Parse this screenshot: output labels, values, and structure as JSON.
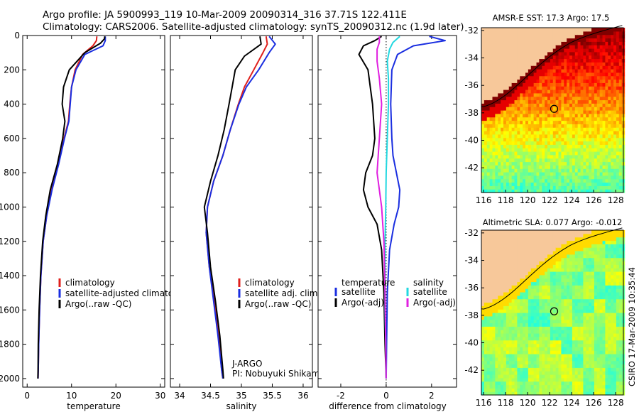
{
  "header": {
    "line1": "Argo profile: JA 5900993_119 10-Mar-2009 20090314_316 37.71S 122.411E",
    "line2": "Climatology: CARS2006. Satellite-adjusted climatology: synTS_20090312.nc (1.9d later)"
  },
  "footer": {
    "stamp": "CSIRO 17-Mar-2009 10:35:44"
  },
  "chart_data": [
    {
      "type": "line",
      "xlabel": "temperature",
      "ylabel": "",
      "xlim": [
        -1,
        31
      ],
      "ylim": [
        2050,
        0
      ],
      "xticks": [
        "0",
        "10",
        "20",
        "30"
      ],
      "yticks": [
        "0",
        "200",
        "400",
        "600",
        "800",
        "1000",
        "1200",
        "1400",
        "1600",
        "1800",
        "2000"
      ],
      "legend": [
        "climatology",
        "satellite-adjusted climatology",
        "Argo(..raw -QC)"
      ],
      "legend_position": "lower-right",
      "series": [
        {
          "name": "climatology",
          "color": "#e0201c",
          "x": [
            15.7,
            15.6,
            14.8,
            12.5,
            10.8,
            10.0,
            9.6,
            9.3,
            8.3,
            7.0,
            5.5,
            4.4,
            3.6,
            3.1,
            2.8,
            2.6,
            2.5,
            2.45
          ],
          "y": [
            5,
            30,
            60,
            110,
            200,
            300,
            400,
            500,
            600,
            750,
            900,
            1050,
            1200,
            1400,
            1600,
            1800,
            1950,
            2000
          ]
        },
        {
          "name": "satellite-adjusted climatology",
          "color": "#1a2ee0",
          "x": [
            17.6,
            17.6,
            17.1,
            13.0,
            11.0,
            10.0,
            9.7,
            9.4,
            8.4,
            7.1,
            5.6,
            4.4,
            3.6,
            3.1,
            2.8,
            2.6,
            2.5,
            2.45
          ],
          "y": [
            5,
            30,
            60,
            110,
            200,
            300,
            400,
            500,
            600,
            750,
            900,
            1050,
            1200,
            1400,
            1600,
            1800,
            1950,
            2000
          ]
        },
        {
          "name": "Argo(..raw -QC)",
          "color": "#000000",
          "x": [
            17.5,
            17.4,
            16.5,
            13.0,
            9.5,
            8.2,
            7.9,
            8.5,
            8.0,
            6.8,
            5.2,
            4.2,
            3.5,
            3.0,
            2.7,
            2.5,
            2.45,
            2.4
          ],
          "y": [
            5,
            20,
            45,
            100,
            200,
            300,
            400,
            500,
            600,
            750,
            900,
            1050,
            1200,
            1400,
            1600,
            1800,
            1950,
            2000
          ]
        }
      ]
    },
    {
      "type": "line",
      "xlabel": "salinity",
      "ylabel": "",
      "xlim": [
        33.85,
        36.15
      ],
      "ylim": [
        2050,
        0
      ],
      "xticks": [
        "34",
        "34.5",
        "35",
        "35.5",
        "36"
      ],
      "legend": [
        "climatology",
        "satellite adj. clim.",
        "Argo(..raw -QC)"
      ],
      "legend_position": "lower-right",
      "annotations": [
        "J-ARGO",
        "PI: Nobuyuki Shikama"
      ],
      "series": [
        {
          "name": "climatology",
          "color": "#e0201c",
          "x": [
            35.4,
            35.42,
            35.35,
            35.2,
            35.05,
            34.95,
            34.82,
            34.7,
            34.55,
            34.45,
            34.43,
            34.48,
            34.56,
            34.63,
            34.68,
            34.7
          ],
          "y": [
            5,
            50,
            100,
            200,
            300,
            400,
            550,
            700,
            850,
            1000,
            1150,
            1350,
            1550,
            1750,
            1950,
            2000
          ]
        },
        {
          "name": "satellite adj. clim.",
          "color": "#1a2ee0",
          "x": [
            35.45,
            35.55,
            35.45,
            35.28,
            35.08,
            34.96,
            34.82,
            34.7,
            34.55,
            34.45,
            34.43,
            34.48,
            34.55,
            34.62,
            34.68,
            34.7
          ],
          "y": [
            5,
            50,
            100,
            200,
            300,
            400,
            550,
            700,
            850,
            1000,
            1150,
            1350,
            1550,
            1750,
            1950,
            2000
          ]
        },
        {
          "name": "Argo(..raw -QC)",
          "color": "#000000",
          "x": [
            35.3,
            35.32,
            35.05,
            34.9,
            34.85,
            34.8,
            34.72,
            34.62,
            34.5,
            34.4,
            34.45,
            34.5,
            34.58,
            34.65,
            34.7,
            34.71
          ],
          "y": [
            5,
            50,
            120,
            200,
            300,
            400,
            550,
            700,
            850,
            1000,
            1150,
            1350,
            1550,
            1750,
            1950,
            2000
          ]
        }
      ]
    },
    {
      "type": "line",
      "xlabel": "difference from climatology",
      "ylabel": "",
      "xlim": [
        -3,
        3.1
      ],
      "ylim": [
        2050,
        0
      ],
      "xticks": [
        "-2",
        "0",
        "2"
      ],
      "legend": [
        "temperature",
        "satellite",
        "Argo(-adj)",
        "salinity",
        "satellite",
        "Argo(-adj)"
      ],
      "legend_position": "lower",
      "series": [
        {
          "name": "satellite",
          "group": "temperature",
          "color": "#1a2ee0",
          "x": [
            1.9,
            2.6,
            1.2,
            0.5,
            0.25,
            0.2,
            0.25,
            0.3,
            0.45,
            0.6,
            0.55,
            0.35,
            0.15,
            0.05,
            0.02,
            0.0
          ],
          "y": [
            5,
            30,
            60,
            110,
            200,
            400,
            600,
            700,
            800,
            900,
            1000,
            1100,
            1250,
            1500,
            1800,
            2000
          ]
        },
        {
          "name": "Argo(-adj)",
          "group": "temperature",
          "color": "#000000",
          "x": [
            -0.2,
            -0.5,
            -1.0,
            -1.2,
            -0.8,
            -0.6,
            -0.5,
            -0.6,
            -0.9,
            -1.0,
            -0.8,
            -0.4,
            -0.2,
            -0.1,
            -0.05,
            0.0
          ],
          "y": [
            5,
            30,
            60,
            110,
            200,
            400,
            600,
            700,
            800,
            900,
            1000,
            1100,
            1250,
            1500,
            1800,
            2000
          ]
        },
        {
          "name": "satellite",
          "group": "salinity",
          "color": "#22d8e0",
          "x": [
            0.6,
            0.3,
            0.15,
            0.05,
            0.1,
            0.1,
            0.05,
            0.0,
            -0.02,
            -0.05,
            -0.05,
            -0.05,
            -0.02,
            0.0
          ],
          "y": [
            5,
            40,
            80,
            150,
            250,
            400,
            600,
            800,
            1000,
            1200,
            1400,
            1600,
            1800,
            2000
          ]
        },
        {
          "name": "Argo(-adj)",
          "group": "salinity",
          "color": "#e020e0",
          "x": [
            -0.3,
            -0.3,
            -0.4,
            -0.4,
            -0.3,
            -0.2,
            -0.3,
            -0.4,
            -0.2,
            -0.1,
            -0.05,
            -0.02,
            0.0
          ],
          "y": [
            5,
            40,
            80,
            150,
            250,
            400,
            600,
            800,
            1000,
            1200,
            1500,
            1800,
            2000
          ]
        }
      ]
    },
    {
      "type": "heatmap",
      "title": "AMSR-E SST: 17.3 Argo: 17.5",
      "xlim": [
        115.8,
        128.7
      ],
      "ylim": [
        -43.8,
        -31.8
      ],
      "xticks": [
        "116",
        "118",
        "120",
        "122",
        "124",
        "126",
        "128"
      ],
      "yticks": [
        "-32",
        "-34",
        "-36",
        "-38",
        "-40",
        "-42"
      ],
      "marker": {
        "lon": 122.41,
        "lat": -37.71
      }
    },
    {
      "type": "heatmap",
      "title": "Altimetric SLA: 0.077 Argo: -0.012",
      "xlim": [
        115.8,
        128.7
      ],
      "ylim": [
        -43.8,
        -31.8
      ],
      "xticks": [
        "116",
        "118",
        "120",
        "122",
        "124",
        "126",
        "128"
      ],
      "yticks": [
        "-32",
        "-34",
        "-36",
        "-38",
        "-40",
        "-42"
      ],
      "marker": {
        "lon": 122.41,
        "lat": -37.71
      }
    }
  ]
}
